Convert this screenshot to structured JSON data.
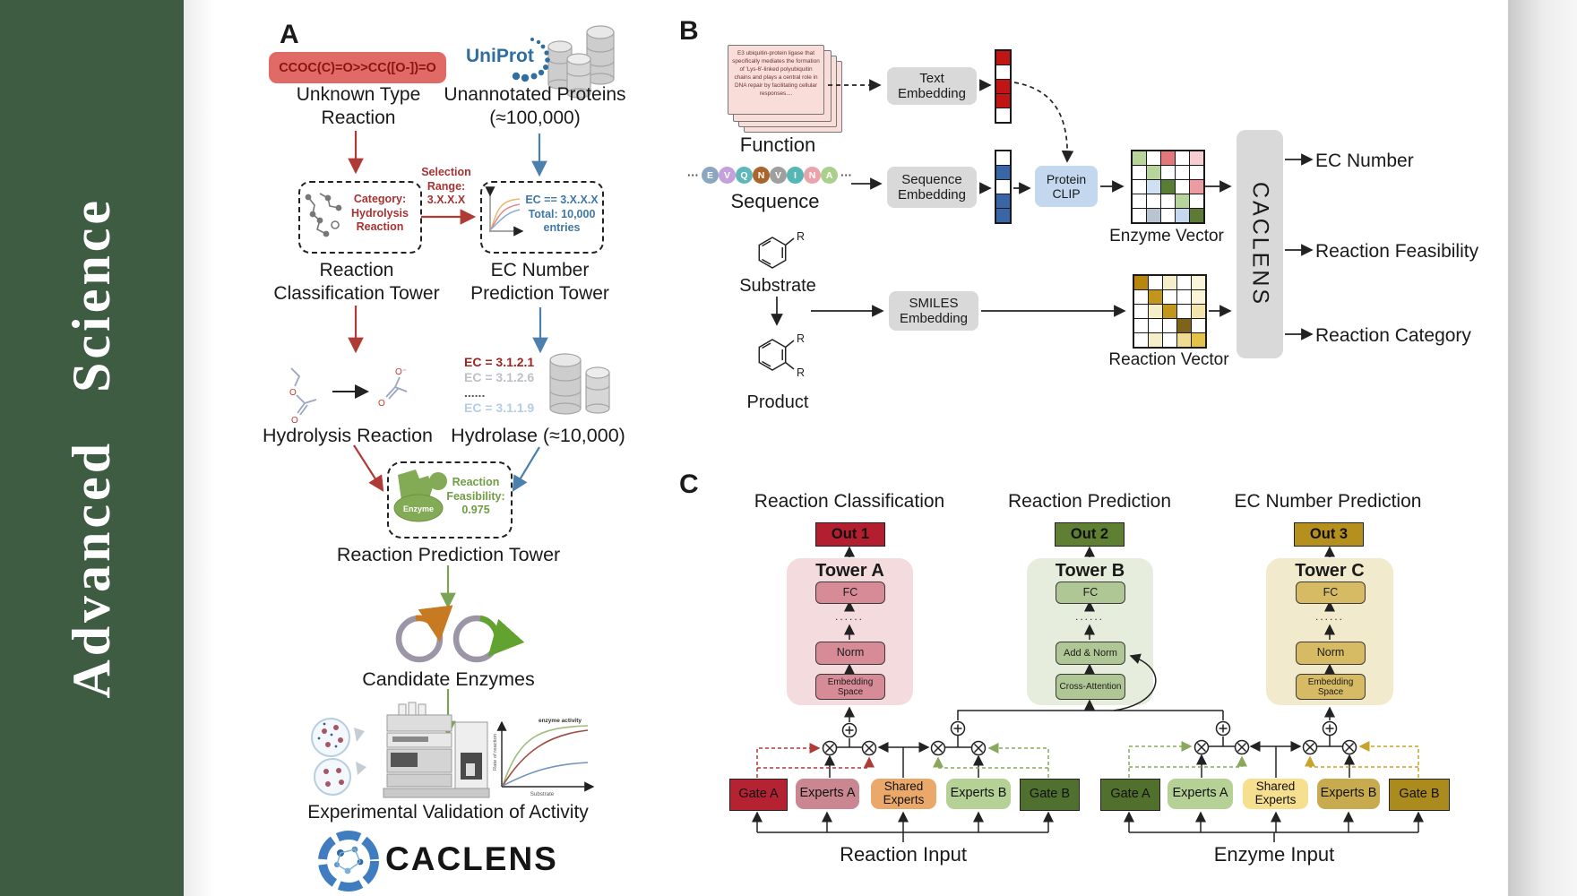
{
  "journal": {
    "name": "Advanced  Science",
    "sidebar_color": "#3E5C41"
  },
  "panelA": {
    "label": "A",
    "smiles": "CCOC(C)=O>>CC([O-])=O",
    "unknownType": "Unknown Type Reaction",
    "uniprot": "UniProt",
    "unannotated": "Unannotated Proteins (≈100,000)",
    "categoryBox": {
      "line1": "Category:",
      "line2": "Hydrolysis",
      "line3": "Reaction"
    },
    "selection": {
      "line1": "Selection",
      "line2": "Range:",
      "line3": "3.X.X.X"
    },
    "ecBox": {
      "line1": "EC == 3.X.X.X",
      "line2": "Total: 10,000",
      "line3": "entries"
    },
    "classTower": "Reaction Classification Tower",
    "ecTower": "EC Number Prediction Tower",
    "hydrolysis": "Hydrolysis Reaction",
    "ecList": [
      {
        "text": "EC = 3.1.2.1",
        "color": "#9d2420"
      },
      {
        "text": "EC = 3.1.2.6",
        "color": "#bcc0c6"
      },
      {
        "text": "......",
        "color": "#555555"
      },
      {
        "text": "EC = 3.1.1.9",
        "color": "#b3cde4"
      }
    ],
    "hydrolase": "Hydrolase (≈10,000)",
    "enzymeBlob": "Enzyme",
    "feasibility": {
      "line1": "Reaction",
      "line2": "Feasibility:",
      "line3": "0.975"
    },
    "predTower": "Reaction Prediction Tower",
    "candidates": "Candidate Enzymes",
    "chart": {
      "title": "enzyme activity",
      "ylabel": "Rate of reaction",
      "xlabel": "Substrate"
    },
    "validation": "Experimental Validation of Activity",
    "caclens": "CACLENS",
    "molecules": {
      "o1": "O",
      "o2": "O",
      "oMinus": "O⁻",
      "o3": "O"
    }
  },
  "panelB": {
    "label": "B",
    "functionCard": "E3 ubiquitin-protein ligase that specifically mediates the formation of 'Lys-6'-linked polyubiquitin chains and plays a central role in DNA repair by facilitating cellular responses....",
    "functionLabel": "Function",
    "dots": "···",
    "residues": [
      {
        "letter": "E",
        "color": "#8ba7c0"
      },
      {
        "letter": "V",
        "color": "#c4a0dc"
      },
      {
        "letter": "Q",
        "color": "#5fb8b8"
      },
      {
        "letter": "N",
        "color": "#a9662c"
      },
      {
        "letter": "V",
        "color": "#9f9f9f"
      },
      {
        "letter": "I",
        "color": "#56b5b5"
      },
      {
        "letter": "N",
        "color": "#eba3ab"
      },
      {
        "letter": "A",
        "color": "#abd08e"
      }
    ],
    "sequenceLabel": "Sequence",
    "substrateLabel": "Substrate",
    "productLabel": "Product",
    "rGroup": "R",
    "textEmbedding": "Text Embedding",
    "sequenceEmbedding": "Sequence Embedding",
    "smilesEmbedding": "SMILES Embedding",
    "proteinClip": "Protein CLIP",
    "textVector": [
      "#c11414",
      "#ffffff",
      "#c11414",
      "#c11414",
      "#ffffff"
    ],
    "seqVector": [
      "#ffffff",
      "#3a66a8",
      "#ffffff",
      "#3a66a8",
      "#3a66a8"
    ],
    "enzymeVector": {
      "label": "Enzyme Vector",
      "cells": [
        "#b7d59b",
        "#ffffff",
        "#e2777c",
        "#ffffff",
        "#f6cdd1",
        "#ffffff",
        "#b7d59b",
        "#ffffff",
        "#ffffff",
        "#ffffff",
        "#ffffff",
        "#cfe0f2",
        "#597d34",
        "#ffffff",
        "#ec9ba1",
        "#ffffff",
        "#ffffff",
        "#ffffff",
        "#b7d59b",
        "#ffffff",
        "#ffffff",
        "#b8c4d2",
        "#ffffff",
        "#c5d8ee",
        "#5d7a36"
      ]
    },
    "reactionVector": {
      "label": "Reaction Vector",
      "cells": [
        "#b8860f",
        "#ffffff",
        "#f6eec9",
        "#ffffff",
        "#faf4d8",
        "#ffffff",
        "#c2951d",
        "#ffffff",
        "#ffffff",
        "#fbf4d6",
        "#ffffff",
        "#f6eec9",
        "#c2951d",
        "#ffffff",
        "#f2e4ac",
        "#ffffff",
        "#ffffff",
        "#ffffff",
        "#7d641a",
        "#ffffff",
        "#ffffff",
        "#f6eec9",
        "#ffffff",
        "#f0dc90",
        "#e3c24a"
      ]
    },
    "caclensBar": "CACLENS",
    "outputs": [
      "EC Number",
      "Reaction Feasibility",
      "Reaction Category"
    ]
  },
  "panelC": {
    "label": "C",
    "towers": [
      {
        "title": "Reaction Classification",
        "out": "Out 1",
        "name": "Tower A",
        "outBg": "#b41f2f",
        "towerBg": "#f3dbde",
        "blockBg": "#d78b96",
        "blocks": [
          "FC",
          "......",
          "Norm",
          "Embedding Space"
        ]
      },
      {
        "title": "Reaction Prediction",
        "out": "Out 2",
        "name": "Tower B",
        "outBg": "#5f7f33",
        "towerBg": "#e7eddd",
        "blockBg": "#afc795",
        "blocks": [
          "FC",
          "......",
          "Add & Norm",
          "Cross-Attention"
        ]
      },
      {
        "title": "EC Number Prediction",
        "out": "Out 3",
        "name": "Tower C",
        "outBg": "#b6901f",
        "towerBg": "#f2eacd",
        "blockBg": "#d7bb64",
        "blocks": [
          "FC",
          "......",
          "Norm",
          "Embedding Space"
        ]
      }
    ],
    "moe": [
      {
        "input": "Reaction Input",
        "boxes": [
          {
            "label": "Gate A",
            "bg": "#b52232"
          },
          {
            "label": "Experts A",
            "bg": "#cb8791"
          },
          {
            "label": "Shared Experts",
            "bg": "#eaa96b"
          },
          {
            "label": "Experts B",
            "bg": "#b6d195"
          },
          {
            "label": "Gate B",
            "bg": "#50702f"
          }
        ]
      },
      {
        "input": "Enzyme Input",
        "boxes": [
          {
            "label": "Gate A",
            "bg": "#52702d"
          },
          {
            "label": "Experts A",
            "bg": "#b6d195"
          },
          {
            "label": "Shared Experts",
            "bg": "#f6df8e"
          },
          {
            "label": "Experts B",
            "bg": "#c9ab4f"
          },
          {
            "label": "Gate B",
            "bg": "#ab8b1e"
          }
        ]
      }
    ]
  }
}
